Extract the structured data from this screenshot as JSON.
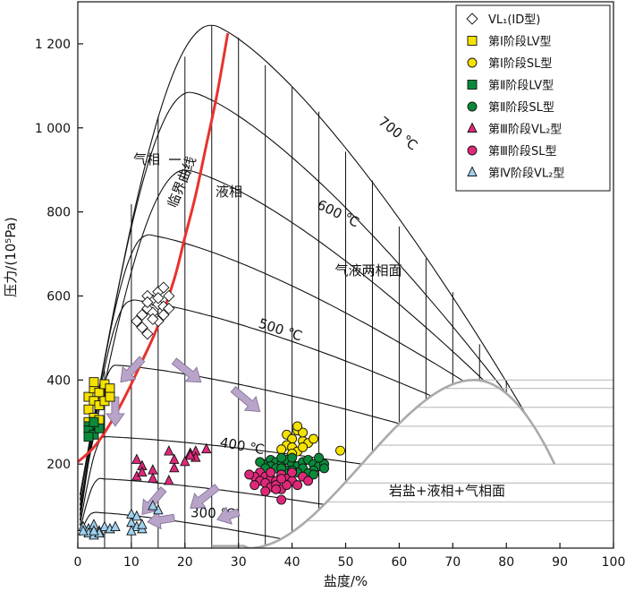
{
  "chart_data": {
    "type": "scatter",
    "xlabel": "盐度/%",
    "ylabel": "压力/(10⁵Pa)",
    "xlim": [
      0,
      100
    ],
    "ylim": [
      0,
      1300
    ],
    "x_ticks": [
      "0",
      "10",
      "20",
      "30",
      "40",
      "50",
      "60",
      "70",
      "80",
      "90",
      "100"
    ],
    "y_ticks": [
      {
        "value": 200,
        "label": "200"
      },
      {
        "value": 400,
        "label": "400"
      },
      {
        "value": 600,
        "label": "600"
      },
      {
        "value": 800,
        "label": "800"
      },
      {
        "value": 1000,
        "label": "1 000"
      },
      {
        "value": 1200,
        "label": "1 200"
      }
    ],
    "annotations": [
      {
        "id": "gas-phase",
        "text": "气相"
      },
      {
        "id": "critical-curve",
        "text": "临界曲线"
      },
      {
        "id": "liquid-phase",
        "text": "液相"
      },
      {
        "id": "two-phase-surface",
        "text": "气液两相面"
      },
      {
        "id": "halite-surface",
        "text": "岩盐+液相+气相面"
      },
      {
        "id": "iso-700",
        "text": "700 ℃"
      },
      {
        "id": "iso-600",
        "text": "600 ℃"
      },
      {
        "id": "iso-500",
        "text": "500 ℃"
      },
      {
        "id": "iso-400",
        "text": "400 ℃"
      },
      {
        "id": "iso-300",
        "text": "300 ℃"
      }
    ],
    "colors": {
      "critical_curve": "#e8322e",
      "halite_curve": "#aaaaaa",
      "arrow": "#b8a4c8",
      "arrow_edge": "#7e6c92",
      "yellow": "#f5e200",
      "green": "#0a8a3a",
      "magenta": "#e0287a",
      "light_blue": "#9fd0ee"
    },
    "series": [
      {
        "name": "VL₁(ID型)",
        "marker": "diamond",
        "color": "#ffffff",
        "points": [
          [
            14,
            590
          ],
          [
            15,
            610
          ],
          [
            16,
            620
          ],
          [
            17,
            600
          ],
          [
            15,
            580
          ],
          [
            13,
            570
          ],
          [
            14,
            560
          ],
          [
            16,
            575
          ],
          [
            13,
            600
          ],
          [
            17,
            570
          ],
          [
            15,
            540
          ],
          [
            12,
            555
          ],
          [
            11,
            540
          ],
          [
            12,
            525
          ],
          [
            13,
            510
          ],
          [
            16,
            555
          ],
          [
            14,
            545
          ],
          [
            13,
            585
          ],
          [
            15,
            595
          ]
        ]
      },
      {
        "name": "第Ⅰ阶段LV型",
        "marker": "square",
        "color": "#f5e200",
        "points": [
          [
            2,
            360
          ],
          [
            3,
            380
          ],
          [
            4,
            370
          ],
          [
            5,
            390
          ],
          [
            6,
            380
          ],
          [
            3,
            350
          ],
          [
            4,
            340
          ],
          [
            2,
            330
          ],
          [
            5,
            350
          ],
          [
            3,
            310
          ],
          [
            2,
            300
          ],
          [
            4,
            305
          ],
          [
            6,
            360
          ],
          [
            3,
            395
          ]
        ]
      },
      {
        "name": "第Ⅰ阶段SL型",
        "marker": "circle",
        "color": "#f5e200",
        "points": [
          [
            39,
            270
          ],
          [
            40,
            260
          ],
          [
            41,
            280
          ],
          [
            42,
            255
          ],
          [
            39,
            245
          ],
          [
            40,
            240
          ],
          [
            43,
            250
          ],
          [
            41,
            230
          ],
          [
            38,
            235
          ],
          [
            42,
            275
          ],
          [
            44,
            260
          ],
          [
            49,
            232
          ],
          [
            40,
            225
          ],
          [
            42,
            240
          ],
          [
            41,
            290
          ]
        ]
      },
      {
        "name": "第Ⅱ阶段LV型",
        "marker": "square",
        "color": "#0a8a3a",
        "points": [
          [
            2,
            290
          ],
          [
            3,
            295
          ],
          [
            2,
            280
          ],
          [
            3,
            270
          ],
          [
            4,
            285
          ],
          [
            2,
            265
          ],
          [
            3,
            300
          ]
        ]
      },
      {
        "name": "第Ⅱ阶段SL型",
        "marker": "circle",
        "color": "#0a8a3a",
        "points": [
          [
            35,
            200
          ],
          [
            36,
            210
          ],
          [
            37,
            205
          ],
          [
            38,
            200
          ],
          [
            39,
            210
          ],
          [
            40,
            200
          ],
          [
            41,
            195
          ],
          [
            42,
            205
          ],
          [
            43,
            210
          ],
          [
            44,
            200
          ],
          [
            45,
            195
          ],
          [
            36,
            195
          ],
          [
            38,
            215
          ],
          [
            40,
            215
          ],
          [
            42,
            190
          ],
          [
            44,
            185
          ],
          [
            46,
            200
          ],
          [
            37,
            190
          ],
          [
            39,
            185
          ],
          [
            41,
            180
          ],
          [
            43,
            178
          ],
          [
            45,
            215
          ],
          [
            46,
            190
          ],
          [
            38,
            190
          ],
          [
            34,
            205
          ],
          [
            35,
            190
          ],
          [
            40,
            185
          ],
          [
            44,
            175
          ]
        ]
      },
      {
        "name": "第Ⅲ阶段VL₂型",
        "marker": "triangle",
        "color": "#e0287a",
        "points": [
          [
            11,
            210
          ],
          [
            12,
            195
          ],
          [
            14,
            185
          ],
          [
            17,
            230
          ],
          [
            18,
            190
          ],
          [
            21,
            225
          ],
          [
            22,
            230
          ],
          [
            24,
            235
          ],
          [
            22,
            215
          ],
          [
            11,
            170
          ],
          [
            14,
            165
          ],
          [
            17,
            160
          ],
          [
            21,
            220
          ],
          [
            20,
            205
          ],
          [
            12,
            180
          ],
          [
            18,
            210
          ]
        ]
      },
      {
        "name": "第Ⅲ阶段SL型",
        "marker": "circle",
        "color": "#e0287a",
        "points": [
          [
            34,
            180
          ],
          [
            35,
            170
          ],
          [
            36,
            165
          ],
          [
            37,
            160
          ],
          [
            38,
            175
          ],
          [
            39,
            165
          ],
          [
            40,
            160
          ],
          [
            41,
            150
          ],
          [
            42,
            170
          ],
          [
            33,
            170
          ],
          [
            34,
            160
          ],
          [
            35,
            155
          ],
          [
            36,
            145
          ],
          [
            37,
            150
          ],
          [
            38,
            140
          ],
          [
            33,
            150
          ],
          [
            32,
            175
          ],
          [
            39,
            150
          ],
          [
            43,
            160
          ],
          [
            35,
            135
          ],
          [
            38,
            165
          ],
          [
            40,
            180
          ],
          [
            36,
            180
          ],
          [
            38,
            115
          ],
          [
            37,
            140
          ]
        ]
      },
      {
        "name": "第Ⅳ阶段VL₂型",
        "marker": "triangle",
        "color": "#9fd0ee",
        "points": [
          [
            1,
            50
          ],
          [
            2,
            45
          ],
          [
            3,
            55
          ],
          [
            4,
            40
          ],
          [
            5,
            50
          ],
          [
            6,
            45
          ],
          [
            2,
            35
          ],
          [
            3,
            30
          ],
          [
            4,
            35
          ],
          [
            10,
            60
          ],
          [
            11,
            50
          ],
          [
            12,
            45
          ],
          [
            10,
            80
          ],
          [
            11,
            75
          ],
          [
            15,
            90
          ],
          [
            14,
            100
          ],
          [
            10,
            40
          ],
          [
            12,
            55
          ],
          [
            7,
            50
          ],
          [
            3,
            40
          ],
          [
            1,
            40
          ]
        ]
      }
    ]
  }
}
